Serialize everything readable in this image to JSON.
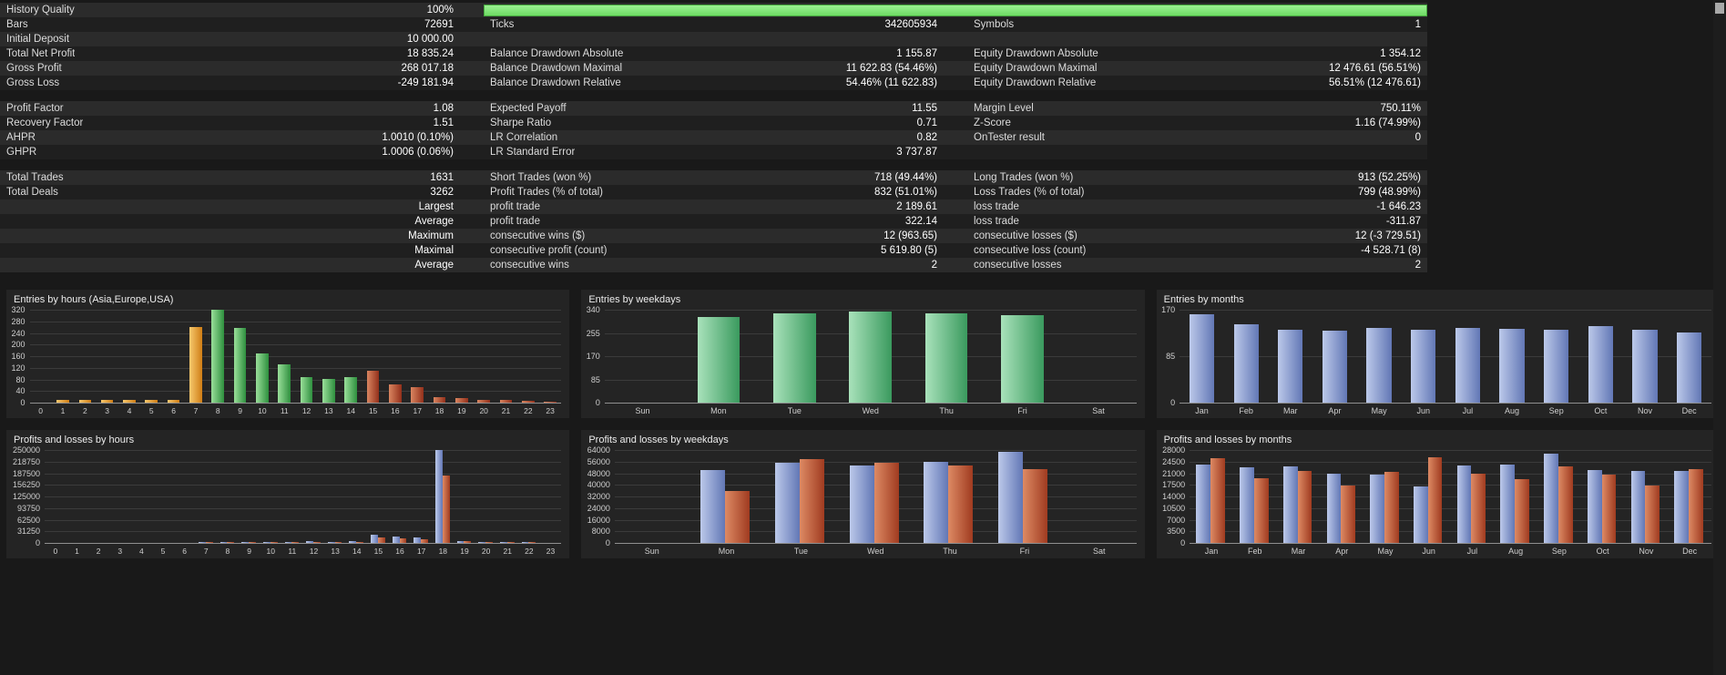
{
  "palette": {
    "asia": {
      "light": "#f7c96e",
      "dark": "#cf7d15"
    },
    "europe": {
      "light": "#9adf9a",
      "dark": "#2e8f3e"
    },
    "usa": {
      "light": "#da8560",
      "dark": "#93301b"
    },
    "green": {
      "light": "#a9e2bb",
      "dark": "#3a9a5e"
    },
    "blue": {
      "light": "#bcc9ea",
      "dark": "#6277b5"
    },
    "red": {
      "light": "#dd8a64",
      "dark": "#a03b20"
    },
    "progress_green": "#7ee577",
    "page_bg": "#191919",
    "row_alt": "#2b2b2b"
  },
  "stats": {
    "history_quality_pct": 100,
    "rows": [
      {
        "type": "quality",
        "cells": [
          {
            "label": "History Quality",
            "value": "100%"
          }
        ]
      },
      {
        "type": "row",
        "cells": [
          {
            "label": "Bars",
            "value": "72691"
          },
          {
            "label": "Ticks",
            "value": "342605934"
          },
          {
            "label": "Symbols",
            "value": "1"
          }
        ]
      },
      {
        "type": "row",
        "cells": [
          {
            "label": "Initial Deposit",
            "value": "10 000.00"
          },
          {
            "label": "",
            "value": ""
          },
          {
            "label": "",
            "value": ""
          }
        ]
      },
      {
        "type": "row",
        "cells": [
          {
            "label": "Total Net Profit",
            "value": "18 835.24"
          },
          {
            "label": "Balance Drawdown Absolute",
            "value": "1 155.87"
          },
          {
            "label": "Equity Drawdown Absolute",
            "value": "1 354.12"
          }
        ]
      },
      {
        "type": "row",
        "cells": [
          {
            "label": "Gross Profit",
            "value": "268 017.18"
          },
          {
            "label": "Balance Drawdown Maximal",
            "value": "11 622.83 (54.46%)"
          },
          {
            "label": "Equity Drawdown Maximal",
            "value": "12 476.61 (56.51%)"
          }
        ]
      },
      {
        "type": "row",
        "cells": [
          {
            "label": "Gross Loss",
            "value": "-249 181.94"
          },
          {
            "label": "Balance Drawdown Relative",
            "value": "54.46% (11 622.83)"
          },
          {
            "label": "Equity Drawdown Relative",
            "value": "56.51% (12 476.61)"
          }
        ]
      },
      {
        "type": "gap"
      },
      {
        "type": "row",
        "cells": [
          {
            "label": "Profit Factor",
            "value": "1.08"
          },
          {
            "label": "Expected Payoff",
            "value": "11.55"
          },
          {
            "label": "Margin Level",
            "value": "750.11%"
          }
        ]
      },
      {
        "type": "row",
        "cells": [
          {
            "label": "Recovery Factor",
            "value": "1.51"
          },
          {
            "label": "Sharpe Ratio",
            "value": "0.71"
          },
          {
            "label": "Z-Score",
            "value": "1.16 (74.99%)"
          }
        ]
      },
      {
        "type": "row",
        "cells": [
          {
            "label": "AHPR",
            "value": "1.0010 (0.10%)"
          },
          {
            "label": "LR Correlation",
            "value": "0.82"
          },
          {
            "label": "OnTester result",
            "value": "0"
          }
        ]
      },
      {
        "type": "row",
        "cells": [
          {
            "label": "GHPR",
            "value": "1.0006 (0.06%)"
          },
          {
            "label": "LR Standard Error",
            "value": "3 737.87"
          },
          {
            "label": "",
            "value": ""
          }
        ]
      },
      {
        "type": "gap"
      },
      {
        "type": "row",
        "cells": [
          {
            "label": "Total Trades",
            "value": "1631"
          },
          {
            "label": "Short Trades (won %)",
            "value": "718 (49.44%)"
          },
          {
            "label": "Long Trades (won %)",
            "value": "913 (52.25%)"
          }
        ]
      },
      {
        "type": "row",
        "cells": [
          {
            "label": "Total Deals",
            "value": "3262"
          },
          {
            "label": "Profit Trades (% of total)",
            "value": "832 (51.01%)"
          },
          {
            "label": "Loss Trades (% of total)",
            "value": "799 (48.99%)"
          }
        ]
      },
      {
        "type": "row",
        "cells": [
          {
            "label": "",
            "value": "Largest"
          },
          {
            "label": "profit trade",
            "value": "2 189.61"
          },
          {
            "label": "loss trade",
            "value": "-1 646.23"
          }
        ]
      },
      {
        "type": "row",
        "cells": [
          {
            "label": "",
            "value": "Average"
          },
          {
            "label": "profit trade",
            "value": "322.14"
          },
          {
            "label": "loss trade",
            "value": "-311.87"
          }
        ]
      },
      {
        "type": "row",
        "cells": [
          {
            "label": "",
            "value": "Maximum"
          },
          {
            "label": "consecutive wins ($)",
            "value": "12 (963.65)"
          },
          {
            "label": "consecutive losses ($)",
            "value": "12 (-3 729.51)"
          }
        ]
      },
      {
        "type": "row",
        "cells": [
          {
            "label": "",
            "value": "Maximal"
          },
          {
            "label": "consecutive profit (count)",
            "value": "5 619.80 (5)"
          },
          {
            "label": "consecutive loss (count)",
            "value": "-4 528.71 (8)"
          }
        ]
      },
      {
        "type": "row",
        "cells": [
          {
            "label": "",
            "value": "Average"
          },
          {
            "label": "consecutive wins",
            "value": "2"
          },
          {
            "label": "consecutive losses",
            "value": "2"
          }
        ]
      }
    ]
  },
  "chart_data": [
    {
      "id": "entries-by-hours",
      "type": "bar",
      "title": "Entries by hours (Asia,Europe,USA)",
      "ymax": 320,
      "yticks": [
        0,
        40,
        80,
        120,
        160,
        200,
        240,
        280,
        320
      ],
      "categories": [
        "0",
        "1",
        "2",
        "3",
        "4",
        "5",
        "6",
        "7",
        "8",
        "9",
        "10",
        "11",
        "12",
        "13",
        "14",
        "15",
        "16",
        "17",
        "18",
        "19",
        "20",
        "21",
        "22",
        "23"
      ],
      "bar_colors": [
        "asia",
        "asia",
        "asia",
        "asia",
        "asia",
        "asia",
        "asia",
        "asia",
        "europe",
        "europe",
        "europe",
        "europe",
        "europe",
        "europe",
        "europe",
        "usa",
        "usa",
        "usa",
        "usa",
        "usa",
        "usa",
        "usa",
        "usa",
        "usa"
      ],
      "series": [
        {
          "name": "entries",
          "values": [
            0,
            8,
            8,
            10,
            8,
            8,
            8,
            260,
            320,
            258,
            168,
            131,
            88,
            83,
            88,
            111,
            63,
            54,
            20,
            17,
            11,
            9,
            6,
            3
          ]
        }
      ]
    },
    {
      "id": "entries-by-weekdays",
      "type": "bar",
      "title": "Entries by weekdays",
      "ymax": 340,
      "yticks": [
        0,
        85,
        170,
        255,
        340
      ],
      "categories": [
        "Sun",
        "Mon",
        "Tue",
        "Wed",
        "Thu",
        "Fri",
        "Sat"
      ],
      "series": [
        {
          "name": "entries",
          "color": "green",
          "values": [
            0,
            313,
            328,
            334,
            328,
            319,
            0
          ]
        }
      ]
    },
    {
      "id": "entries-by-months",
      "type": "bar",
      "title": "Entries by months",
      "ymax": 170,
      "yticks": [
        0,
        85,
        170
      ],
      "categories": [
        "Jan",
        "Feb",
        "Mar",
        "Apr",
        "May",
        "Jun",
        "Jul",
        "Aug",
        "Sep",
        "Oct",
        "Nov",
        "Dec"
      ],
      "series": [
        {
          "name": "entries",
          "color": "blue",
          "values": [
            161,
            143,
            134,
            131,
            137,
            134,
            137,
            135,
            134,
            140,
            134,
            128
          ]
        }
      ]
    },
    {
      "id": "pl-by-hours",
      "type": "bar",
      "title": "Profits and losses by hours",
      "ymax": 250000,
      "yticks": [
        0,
        31250,
        62500,
        93750,
        125000,
        156250,
        187500,
        218750,
        250000
      ],
      "categories": [
        "0",
        "1",
        "2",
        "3",
        "4",
        "5",
        "6",
        "7",
        "8",
        "9",
        "10",
        "11",
        "12",
        "13",
        "14",
        "15",
        "16",
        "17",
        "18",
        "19",
        "20",
        "21",
        "22",
        "23"
      ],
      "series": [
        {
          "name": "profit",
          "color": "blue",
          "values": [
            0,
            0,
            0,
            0,
            0,
            0,
            0,
            600,
            900,
            900,
            2200,
            2000,
            4600,
            3600,
            4600,
            22000,
            17000,
            14000,
            250000,
            6000,
            2000,
            900,
            500,
            0
          ]
        },
        {
          "name": "loss",
          "color": "red",
          "values": [
            0,
            0,
            0,
            0,
            0,
            0,
            0,
            400,
            600,
            700,
            1900,
            1600,
            3600,
            2900,
            3600,
            15500,
            11500,
            11000,
            182000,
            4200,
            1500,
            600,
            300,
            0
          ]
        }
      ]
    },
    {
      "id": "pl-by-weekdays",
      "type": "bar",
      "title": "Profits and losses by weekdays",
      "ymax": 64000,
      "yticks": [
        0,
        8000,
        16000,
        24000,
        32000,
        40000,
        48000,
        56000,
        64000
      ],
      "categories": [
        "Sun",
        "Mon",
        "Tue",
        "Wed",
        "Thu",
        "Fri",
        "Sat"
      ],
      "series": [
        {
          "name": "profit",
          "color": "blue",
          "values": [
            0,
            50000,
            55000,
            53500,
            56000,
            63000,
            0
          ]
        },
        {
          "name": "loss",
          "color": "red",
          "values": [
            0,
            36000,
            57500,
            55000,
            53500,
            51000,
            0
          ]
        }
      ]
    },
    {
      "id": "pl-by-months",
      "type": "bar",
      "title": "Profits and losses by months",
      "ymax": 28000,
      "yticks": [
        0,
        3500,
        7000,
        10500,
        14000,
        17500,
        21000,
        24500,
        28000
      ],
      "categories": [
        "Jan",
        "Feb",
        "Mar",
        "Apr",
        "May",
        "Jun",
        "Jul",
        "Aug",
        "Sep",
        "Oct",
        "Nov",
        "Dec"
      ],
      "series": [
        {
          "name": "profit",
          "color": "blue",
          "values": [
            23700,
            22700,
            23000,
            20900,
            20500,
            17000,
            23400,
            23700,
            26900,
            22000,
            21600,
            21600
          ]
        },
        {
          "name": "loss",
          "color": "red",
          "values": [
            25500,
            19500,
            21600,
            17400,
            21300,
            25800,
            20900,
            19100,
            23000,
            20500,
            17400,
            22300
          ]
        }
      ]
    }
  ]
}
